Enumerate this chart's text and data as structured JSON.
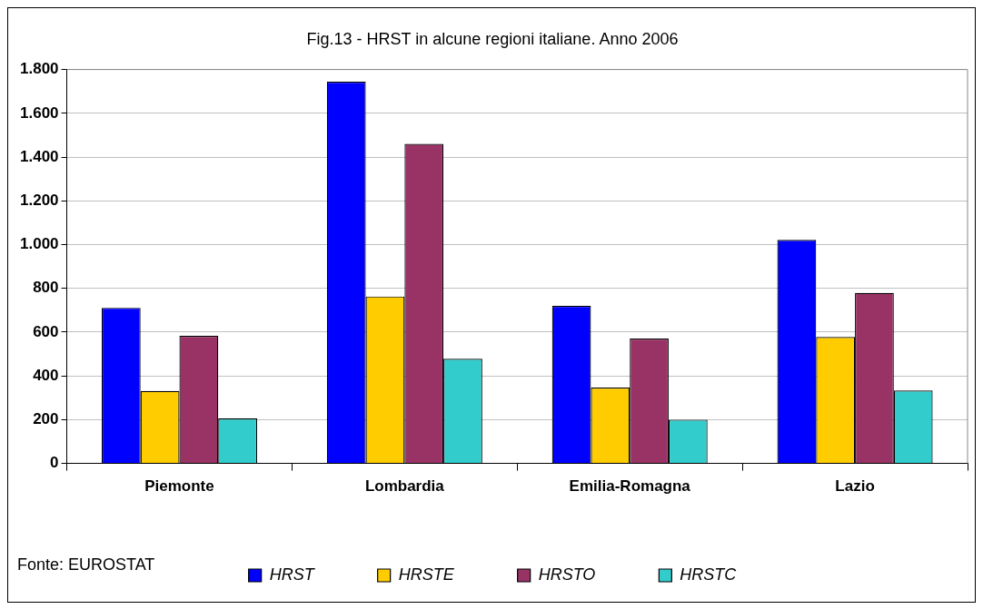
{
  "chart_data": {
    "type": "bar",
    "title": "Fig.13 - HRST in alcune regioni italiane. Anno 2006",
    "categories": [
      "Piemonte",
      "Lombardia",
      "Emilia-Romagna",
      "Lazio"
    ],
    "series": [
      {
        "name": "HRST",
        "color": "#0000ff",
        "values": [
          711,
          1744,
          720,
          1022
        ]
      },
      {
        "name": "HRSTE",
        "color": "#ffcc00",
        "values": [
          331,
          763,
          347,
          578
        ]
      },
      {
        "name": "HRSTO",
        "color": "#993366",
        "values": [
          583,
          1460,
          571,
          779
        ]
      },
      {
        "name": "HRSTC",
        "color": "#33cccc",
        "values": [
          206,
          478,
          200,
          333
        ]
      }
    ],
    "ylim": [
      0,
      1800
    ],
    "yticks": [
      0,
      200,
      400,
      600,
      800,
      {
        "value": 1000,
        "label": "1.000"
      },
      {
        "value": 1200,
        "label": "1.200"
      },
      {
        "value": 1400,
        "label": "1.400"
      },
      {
        "value": 1600,
        "label": "1.600"
      },
      {
        "value": 1800,
        "label": "1.800"
      }
    ],
    "grid": "y",
    "legend": "bottom",
    "annotations": [
      "Fonte: EUROSTAT"
    ]
  }
}
